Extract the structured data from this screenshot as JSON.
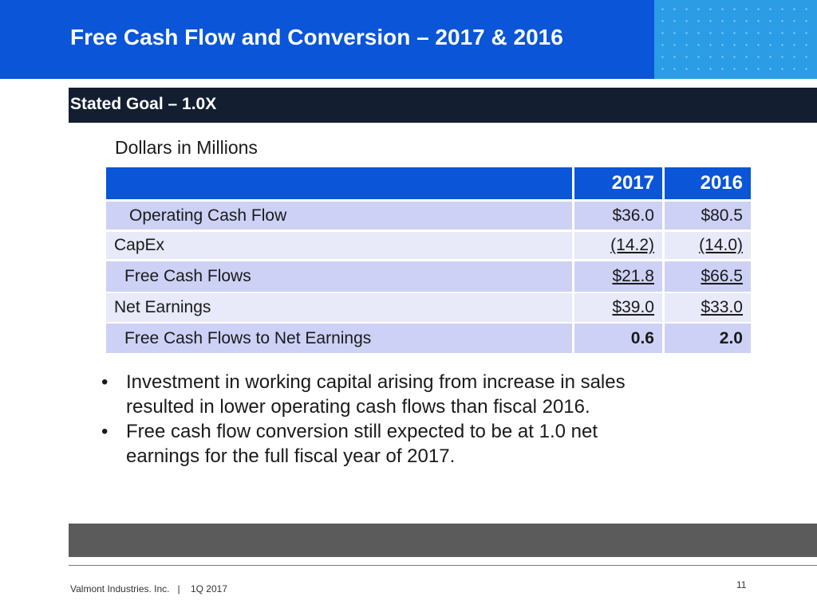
{
  "header": {
    "title": "Free Cash Flow and Conversion – 2017 & 2016"
  },
  "goal": {
    "text": "Stated Goal – 1.0X"
  },
  "table": {
    "units": "Dollars in Millions",
    "columns": [
      "2017",
      "2016"
    ],
    "rows": [
      {
        "label": "Operating Cash Flow",
        "v2017": "$36.0",
        "v2016": "$80.5"
      },
      {
        "label": "CapEx",
        "v2017": "(14.2)",
        "v2016": "(14.0)"
      },
      {
        "label": "Free Cash Flows",
        "v2017": "$21.8",
        "v2016": "$66.5"
      },
      {
        "label": "Net Earnings",
        "v2017": "$39.0",
        "v2016": "$33.0"
      },
      {
        "label": "Free Cash Flows to Net Earnings",
        "v2017": "0.6",
        "v2016": "2.0"
      }
    ]
  },
  "bullets": {
    "marker": "•",
    "items": [
      "Investment in working capital arising from increase in sales resulted in lower operating cash flows than fiscal 2016.",
      "Free cash flow conversion still expected to be at 1.0 net earnings for the full fiscal year of 2017."
    ]
  },
  "footer": {
    "company": "Valmont Industries. Inc.   |    1Q 2017",
    "page_number": "11"
  },
  "colors": {
    "header_blue": "#0a55d8",
    "pattern_blue": "#2a9de6",
    "goal_bar": "#131f31",
    "row_dark": "#cdd1f5",
    "row_light": "#e8e9f9",
    "footer_band": "#5b5b5b"
  }
}
